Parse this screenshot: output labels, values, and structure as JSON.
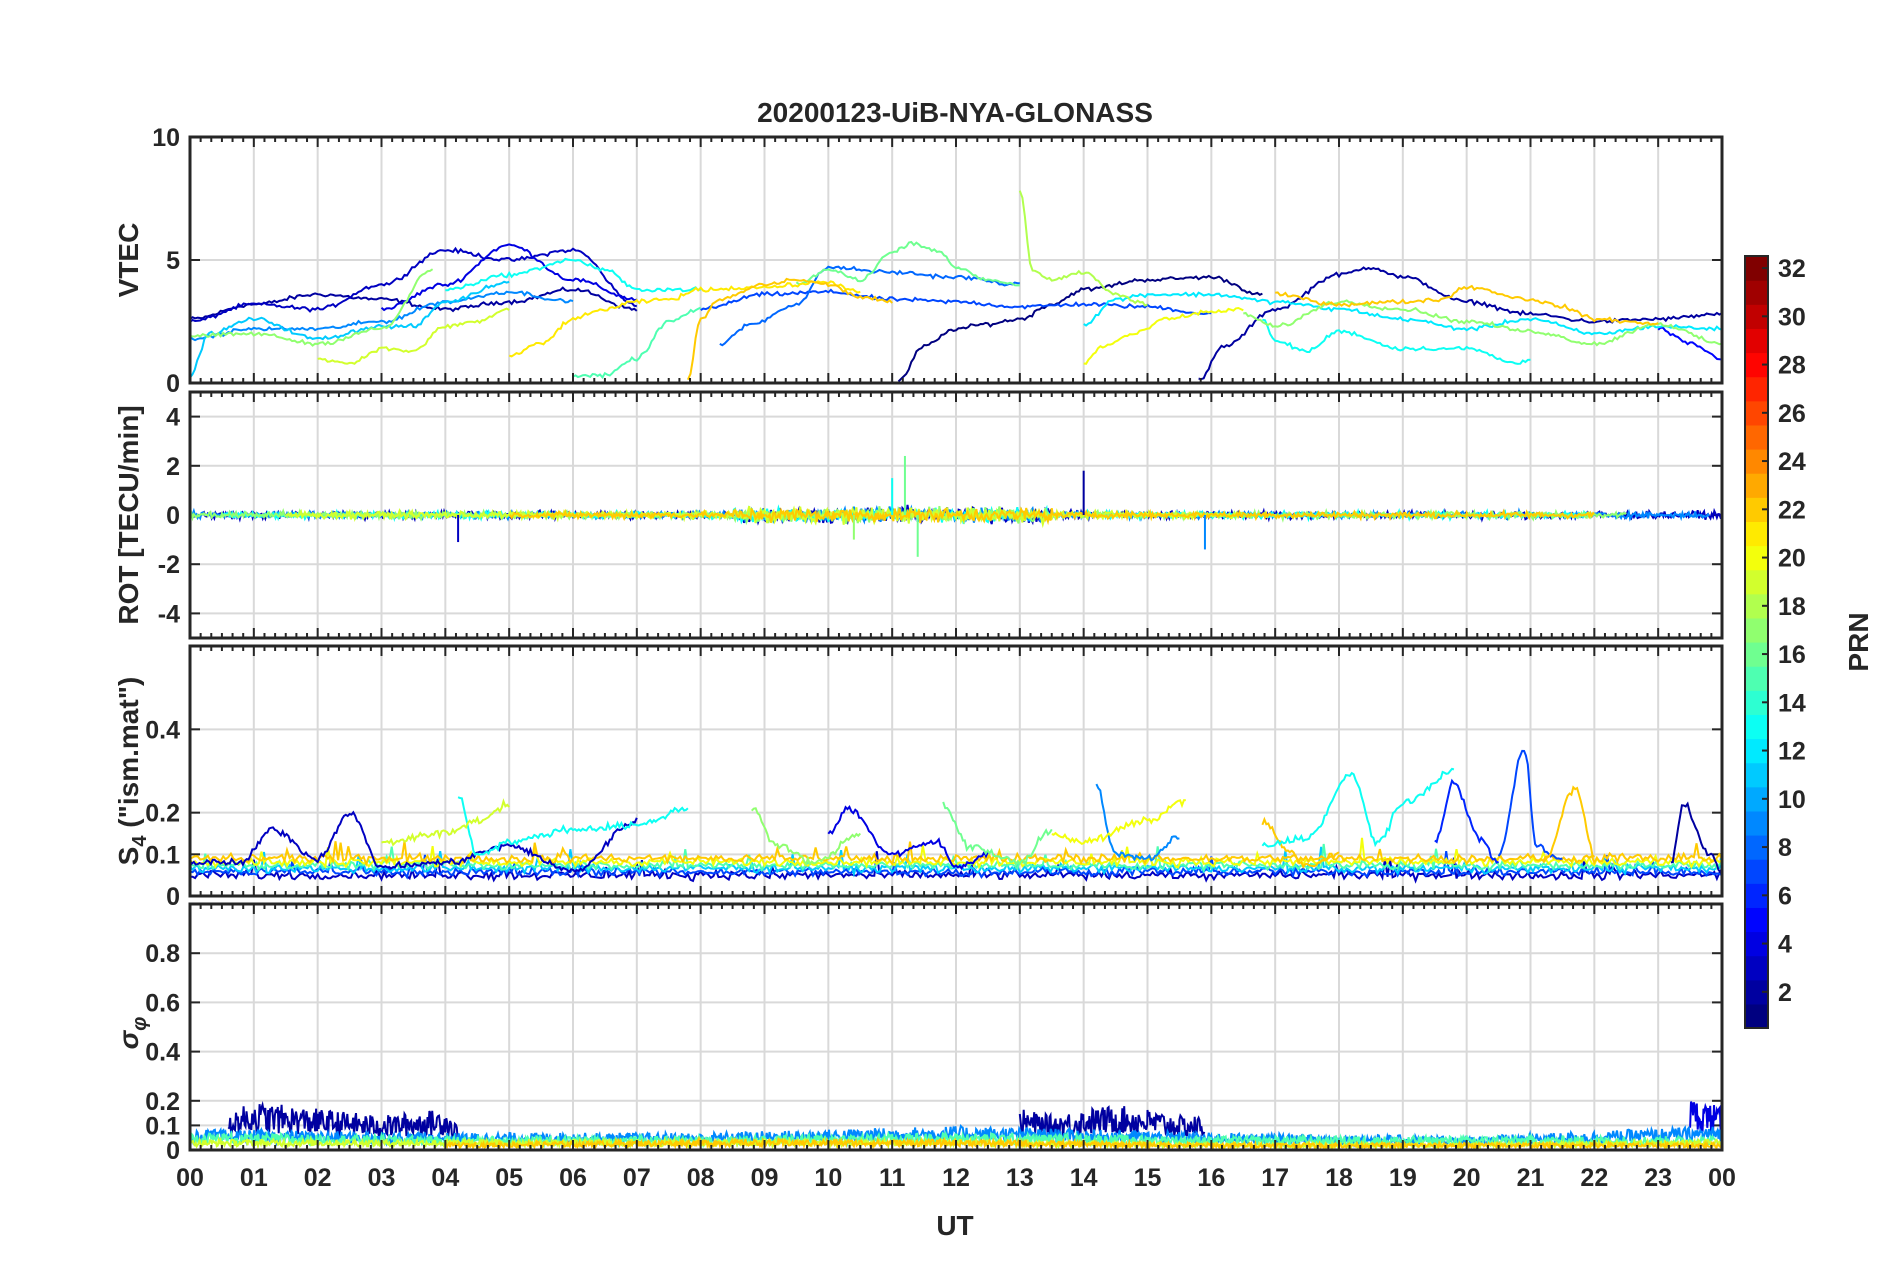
{
  "chart_data": {
    "type": "line",
    "title": "20200123-UiB-NYA-GLONASS",
    "xlabel": "UT",
    "x_tick_labels": [
      "00",
      "01",
      "02",
      "03",
      "04",
      "05",
      "06",
      "07",
      "08",
      "09",
      "10",
      "11",
      "12",
      "13",
      "14",
      "15",
      "16",
      "17",
      "18",
      "19",
      "20",
      "21",
      "22",
      "23",
      "00"
    ],
    "xlim": [
      0,
      24
    ],
    "grid": true,
    "colorbar": {
      "label": "PRN",
      "range": [
        1,
        32
      ],
      "tick_labels": [
        "2",
        "4",
        "6",
        "8",
        "10",
        "12",
        "14",
        "16",
        "18",
        "20",
        "22",
        "24",
        "26",
        "28",
        "30",
        "32"
      ],
      "colormap": "jet"
    },
    "panels": [
      {
        "ylabel": "VTEC",
        "ylim": [
          0,
          10
        ],
        "y_tick_labels": [
          "0",
          "5",
          "10"
        ],
        "series": [
          {
            "prn": 2,
            "x": [
              0,
              1,
              2,
              3,
              4,
              5,
              6,
              7
            ],
            "y": [
              2.6,
              3.2,
              3.6,
              3.4,
              3.0,
              3.3,
              3.8,
              3.0
            ]
          },
          {
            "prn": 3,
            "x": [
              0,
              1,
              2,
              3,
              4,
              5,
              6,
              7
            ],
            "y": [
              2.5,
              3.2,
              3.0,
              4.0,
              5.4,
              5.0,
              5.4,
              3.2
            ]
          },
          {
            "prn": 4,
            "x": [
              3,
              4,
              5,
              6,
              7
            ],
            "y": [
              3.0,
              4.0,
              5.6,
              4.2,
              3.4
            ]
          },
          {
            "prn": 1,
            "x": [
              11.1,
              11.5,
              12,
              12.5,
              13,
              13.5,
              14,
              15,
              16,
              16.8
            ],
            "y": [
              0.1,
              1.5,
              2.2,
              2.4,
              2.6,
              3.2,
              3.8,
              4.2,
              4.3,
              3.6
            ]
          },
          {
            "prn": 2,
            "x": [
              15.8,
              16.2,
              17,
              18,
              18.5,
              19,
              20,
              21,
              22,
              23,
              24
            ],
            "y": [
              0.1,
              1.5,
              3.0,
              4.4,
              4.7,
              4.3,
              3.3,
              2.8,
              2.5,
              2.6,
              2.8
            ]
          },
          {
            "prn": 5,
            "x": [
              23,
              23.5,
              24
            ],
            "y": [
              2.2,
              1.6,
              1.0
            ]
          },
          {
            "prn": 7,
            "x": [
              8,
              9,
              10,
              11,
              12,
              13,
              14,
              15,
              16
            ],
            "y": [
              3.0,
              3.6,
              3.7,
              3.4,
              3.3,
              3.1,
              3.2,
              3.1,
              2.8
            ]
          },
          {
            "prn": 8,
            "x": [
              8.3,
              8.8,
              9.5,
              10,
              11,
              12,
              13
            ],
            "y": [
              1.6,
              2.4,
              3.2,
              4.7,
              4.5,
              4.3,
              4.0
            ]
          },
          {
            "prn": 9,
            "x": [
              0,
              1,
              2,
              3,
              4,
              5,
              6
            ],
            "y": [
              1.8,
              2.2,
              2.2,
              2.5,
              3.3,
              3.7,
              3.3
            ]
          },
          {
            "prn": 11,
            "x": [
              0,
              0.3,
              1,
              2,
              3,
              3.5,
              4,
              5
            ],
            "y": [
              0.3,
              2.0,
              2.6,
              1.8,
              2.3,
              2.3,
              3.3,
              4.1
            ]
          },
          {
            "prn": 12,
            "x": [
              14,
              14.5,
              15,
              16,
              17,
              18,
              19,
              20,
              21,
              22,
              23,
              24
            ],
            "y": [
              2.4,
              3.4,
              3.6,
              3.6,
              3.3,
              3.0,
              2.6,
              2.2,
              2.6,
              2.0,
              2.3,
              2.2
            ]
          },
          {
            "prn": 13,
            "x": [
              4,
              5,
              6,
              6.5,
              7,
              8
            ],
            "y": [
              3.8,
              4.4,
              5.0,
              4.6,
              3.8,
              3.8
            ]
          },
          {
            "prn": 13,
            "x": [
              16.8,
              17,
              17.5,
              18,
              19,
              20,
              20.8,
              21
            ],
            "y": [
              2.6,
              1.7,
              1.3,
              2.1,
              1.4,
              1.4,
              0.8,
              1.0
            ]
          },
          {
            "prn": 15,
            "x": [
              6,
              6.5,
              7,
              7.5,
              8
            ],
            "y": [
              0.3,
              0.3,
              1.0,
              2.5,
              3.0
            ]
          },
          {
            "prn": 16,
            "x": [
              9.5,
              10,
              10.5,
              11,
              11.3,
              11.7,
              12,
              12.5,
              13
            ],
            "y": [
              4.0,
              4.6,
              4.2,
              5.3,
              5.7,
              5.4,
              4.7,
              4.2,
              4.0
            ]
          },
          {
            "prn": 17,
            "x": [
              0,
              1,
              2,
              3,
              3.8
            ],
            "y": [
              1.9,
              2.0,
              1.6,
              2.2,
              4.6
            ]
          },
          {
            "prn": 17,
            "x": [
              16.5,
              17,
              18,
              19,
              20,
              21,
              22,
              23,
              24
            ],
            "y": [
              2.8,
              2.3,
              3.3,
              3.0,
              2.5,
              2.1,
              1.6,
              2.4,
              1.6
            ]
          },
          {
            "prn": 18,
            "x": [
              13,
              13.2,
              13.5,
              14,
              14.5,
              15
            ],
            "y": [
              7.8,
              4.6,
              4.2,
              4.5,
              3.6,
              3.2
            ]
          },
          {
            "prn": 19,
            "x": [
              2,
              2.5,
              3,
              3.5,
              4,
              4.5,
              5
            ],
            "y": [
              1.0,
              0.8,
              1.4,
              1.3,
              2.3,
              2.5,
              3.0
            ]
          },
          {
            "prn": 20,
            "x": [
              14,
              14.3,
              14.8,
              15.3,
              16,
              16.5
            ],
            "y": [
              0.8,
              1.5,
              2.0,
              2.6,
              2.9,
              3.0
            ]
          },
          {
            "prn": 21,
            "x": [
              5,
              5.5,
              6,
              6.5,
              7,
              7.5,
              8,
              9,
              10,
              10.5
            ],
            "y": [
              1.1,
              1.6,
              2.6,
              3.0,
              3.3,
              3.4,
              3.8,
              3.9,
              4.1,
              3.7
            ]
          },
          {
            "prn": 22,
            "x": [
              7.8,
              8,
              8.3,
              9,
              9.5,
              10,
              10.5,
              11
            ],
            "y": [
              0.1,
              2.6,
              3.4,
              4.0,
              4.2,
              4.0,
              3.5,
              3.3
            ]
          },
          {
            "prn": 22,
            "x": [
              17,
              18,
              19,
              19.6,
              20,
              21,
              21.5,
              22,
              23
            ],
            "y": [
              3.6,
              3.2,
              3.3,
              3.4,
              3.9,
              3.4,
              3.1,
              2.6,
              2.4
            ]
          }
        ]
      },
      {
        "ylabel": "ROT [TECU/min]",
        "ylim": [
          -5,
          5
        ],
        "y_tick_labels": [
          "-4",
          "-2",
          "0",
          "2",
          "4"
        ],
        "noise_bands": [
          {
            "prn": 3,
            "x": [
              0,
              24
            ],
            "amplitude": 0.22
          },
          {
            "prn": 9,
            "x": [
              0,
              23.8
            ],
            "amplitude": 0.18
          },
          {
            "prn": 13,
            "x": [
              0.5,
              22
            ],
            "amplitude": 0.18
          },
          {
            "prn": 17,
            "x": [
              0,
              22.5
            ],
            "amplitude": 0.2
          },
          {
            "prn": 19,
            "x": [
              1.5,
              16.5
            ],
            "amplitude": 0.2
          },
          {
            "prn": 22,
            "x": [
              5,
              22
            ],
            "amplitude": 0.18
          }
        ],
        "peaks": [
          {
            "prn": 3,
            "x": 4.2,
            "y": -1.1
          },
          {
            "prn": 17,
            "x": 10.4,
            "y": -1.0
          },
          {
            "prn": 16,
            "x": 11.2,
            "y": 2.4
          },
          {
            "prn": 16,
            "x": 11.4,
            "y": -1.7
          },
          {
            "prn": 2,
            "x": 14.0,
            "y": 1.8
          },
          {
            "prn": 9,
            "x": 15.9,
            "y": -1.4
          },
          {
            "prn": 13,
            "x": 11.0,
            "y": 1.5
          }
        ]
      },
      {
        "ylabel": "S4 (\"ism.mat\")",
        "ylim": [
          0,
          0.6
        ],
        "y_tick_labels": [
          "0",
          "0.1",
          "0.2",
          "0.4"
        ],
        "baseline_prns": [
          3,
          7,
          11,
          15,
          20,
          22
        ],
        "series": [
          {
            "prn": 3,
            "x": [
              0,
              0.8,
              1.3,
              2,
              2.5,
              3,
              4,
              5,
              6,
              7
            ],
            "y": [
              0.08,
              0.08,
              0.16,
              0.09,
              0.2,
              0.07,
              0.08,
              0.12,
              0.06,
              0.18
            ]
          },
          {
            "prn": 13,
            "x": [
              4.2,
              4.5,
              5,
              6,
              7,
              7.8
            ],
            "y": [
              0.24,
              0.1,
              0.13,
              0.16,
              0.17,
              0.21
            ]
          },
          {
            "prn": 19,
            "x": [
              3,
              4,
              4.5,
              5
            ],
            "y": [
              0.13,
              0.15,
              0.18,
              0.22
            ]
          },
          {
            "prn": 17,
            "x": [
              8.8,
              9.2,
              9.8,
              10.5
            ],
            "y": [
              0.21,
              0.12,
              0.08,
              0.15
            ]
          },
          {
            "prn": 4,
            "x": [
              10,
              10.3,
              11,
              11.7,
              12,
              12.5
            ],
            "y": [
              0.15,
              0.21,
              0.1,
              0.13,
              0.07,
              0.1
            ]
          },
          {
            "prn": 16,
            "x": [
              11.8,
              12.2,
              13,
              13.5
            ],
            "y": [
              0.22,
              0.12,
              0.08,
              0.16
            ]
          },
          {
            "prn": 9,
            "x": [
              14.2,
              14.5,
              15,
              15.5
            ],
            "y": [
              0.26,
              0.1,
              0.09,
              0.14
            ]
          },
          {
            "prn": 20,
            "x": [
              13.5,
              14,
              15,
              15.6
            ],
            "y": [
              0.15,
              0.13,
              0.18,
              0.23
            ]
          },
          {
            "prn": 22,
            "x": [
              16.8,
              17.2,
              17.5,
              18
            ],
            "y": [
              0.18,
              0.11,
              0.07,
              0.1
            ]
          },
          {
            "prn": 13,
            "x": [
              16.8,
              17.5,
              18.2,
              18.6,
              19,
              19.8
            ],
            "y": [
              0.12,
              0.14,
              0.29,
              0.13,
              0.22,
              0.3
            ]
          },
          {
            "prn": 6,
            "x": [
              19.5,
              19.8,
              20.2,
              20.5
            ],
            "y": [
              0.13,
              0.27,
              0.14,
              0.08
            ]
          },
          {
            "prn": 7,
            "x": [
              20.5,
              20.9,
              21.1,
              21.5
            ],
            "y": [
              0.1,
              0.35,
              0.12,
              0.09
            ]
          },
          {
            "prn": 22,
            "x": [
              21.2,
              21.7,
              22
            ],
            "y": [
              0.08,
              0.26,
              0.1
            ]
          },
          {
            "prn": 2,
            "x": [
              23.2,
              23.4,
              23.8,
              24
            ],
            "y": [
              0.08,
              0.22,
              0.1,
              0.06
            ]
          }
        ]
      },
      {
        "ylabel": "σφ",
        "ylim": [
          0,
          1
        ],
        "y_tick_labels": [
          "0",
          "0.1",
          "0.2",
          "0.4",
          "0.6",
          "0.8"
        ],
        "series": [
          {
            "prn": 2,
            "x": [
              0.6,
              1,
              2,
              3,
              4,
              4.2
            ],
            "y": [
              0.11,
              0.14,
              0.12,
              0.1,
              0.12,
              0.07
            ]
          },
          {
            "prn": 2,
            "x": [
              13,
              13.5,
              14,
              14.5,
              15,
              15.5,
              15.9
            ],
            "y": [
              0.12,
              0.1,
              0.12,
              0.13,
              0.12,
              0.1,
              0.1
            ]
          },
          {
            "prn": 4,
            "x": [
              23.5,
              23.8,
              24
            ],
            "y": [
              0.15,
              0.14,
              0.12
            ]
          },
          {
            "prn": 9,
            "x": [
              0,
              4,
              8,
              12,
              16,
              20,
              24
            ],
            "y": [
              0.06,
              0.05,
              0.05,
              0.07,
              0.05,
              0.04,
              0.07
            ]
          },
          {
            "prn": 15,
            "x": [
              0,
              4,
              8,
              12,
              16,
              20,
              24
            ],
            "y": [
              0.05,
              0.04,
              0.04,
              0.05,
              0.04,
              0.04,
              0.04
            ]
          },
          {
            "prn": 19,
            "x": [
              0,
              4,
              8,
              12,
              16,
              20,
              24
            ],
            "y": [
              0.03,
              0.03,
              0.03,
              0.03,
              0.02,
              0.02,
              0.03
            ]
          },
          {
            "prn": 22,
            "x": [
              4,
              8,
              12,
              16,
              20,
              24
            ],
            "y": [
              0.02,
              0.03,
              0.03,
              0.02,
              0.02,
              0.02
            ]
          }
        ]
      }
    ]
  }
}
